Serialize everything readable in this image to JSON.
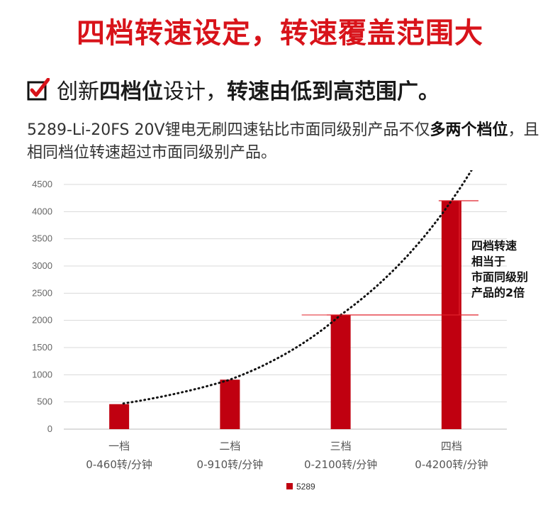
{
  "headline": "四档转速设定，转速覆盖范围大",
  "subline": {
    "part1": "创新",
    "part2": "四档位",
    "part3": "设计，",
    "part4": "转速由低到高范围广。"
  },
  "desc": {
    "part1": "5289-Li-20FS 20V锂电无刷四速钻比市面同级别产品不仅",
    "part2": "多两个档位",
    "part3": "，且相同档位转速超过市面同级别产品。"
  },
  "colors": {
    "brand_red": "#d8131a",
    "bar": "#c00010",
    "marker_line": "#e0202a"
  },
  "chart_data": {
    "type": "bar",
    "categories": [
      "一档",
      "二档",
      "三档",
      "四档"
    ],
    "category_sublabels": [
      "0-460转/分钟",
      "0-910转/分钟",
      "0-2100转/分钟",
      "0-4200转/分钟"
    ],
    "series": [
      {
        "name": "5289",
        "values": [
          460,
          910,
          2100,
          4200
        ]
      }
    ],
    "ylim": [
      0,
      4500
    ],
    "yticks": [
      "0",
      "500",
      "1000",
      "1500",
      "2000",
      "2500",
      "3000",
      "3500",
      "4000",
      "4500"
    ],
    "grid": true,
    "trendline": "dotted exponential",
    "annotation": {
      "lines": [
        "四档转速",
        "相当于",
        "市面同级别",
        "产品的2倍"
      ],
      "from": 2100,
      "to": 4200
    },
    "legend_position": "bottom"
  }
}
